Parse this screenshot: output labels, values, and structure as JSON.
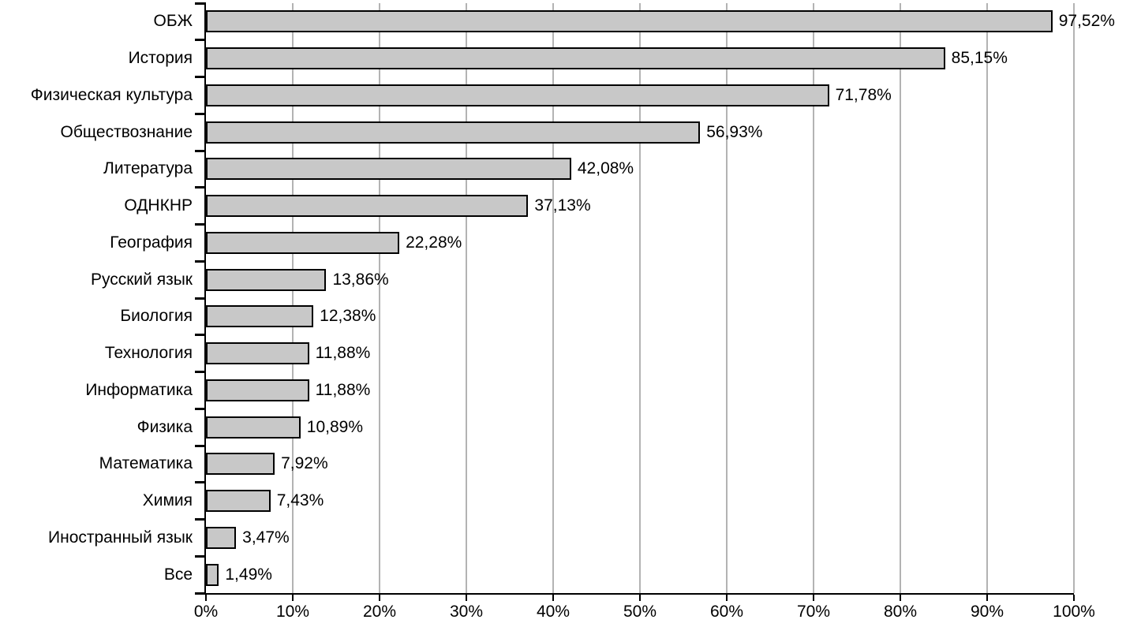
{
  "chart_data": {
    "type": "bar",
    "orientation": "horizontal",
    "title": "",
    "xlabel": "",
    "ylabel": "",
    "categories": [
      "ОБЖ",
      "История",
      "Физическая культура",
      "Обществознание",
      "Литература",
      "ОДНКНР",
      "География",
      "Русский язык",
      "Биология",
      "Технология",
      "Информатика",
      "Физика",
      "Математика",
      "Химия",
      "Иностранный язык",
      "Все"
    ],
    "values": [
      97.52,
      85.15,
      71.78,
      56.93,
      42.08,
      37.13,
      22.28,
      13.86,
      12.38,
      11.88,
      11.88,
      10.89,
      7.92,
      7.43,
      3.47,
      1.49
    ],
    "value_labels": [
      "97,52%",
      "85,15%",
      "71,78%",
      "56,93%",
      "42,08%",
      "37,13%",
      "22,28%",
      "13,86%",
      "12,38%",
      "11,88%",
      "11,88%",
      "10,89%",
      "7,92%",
      "7,43%",
      "3,47%",
      "1,49%"
    ],
    "xlim": [
      0,
      100
    ],
    "x_tick_step": 10,
    "x_ticks": [
      "0%",
      "10%",
      "20%",
      "30%",
      "40%",
      "50%",
      "60%",
      "70%",
      "80%",
      "90%",
      "100%"
    ],
    "grid": "vertical",
    "legend": "none",
    "colors": {
      "background": "#ffffff",
      "bar_fill": "#c8c8c8",
      "bar_border": "#000000",
      "gridline": "#b3b3b3",
      "axis": "#000000",
      "text": "#000000"
    }
  }
}
